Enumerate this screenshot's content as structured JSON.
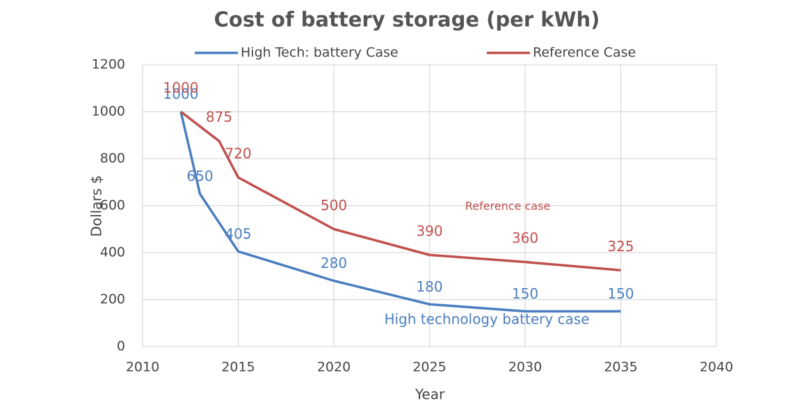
{
  "chart_data": {
    "type": "line",
    "title": "Cost of battery storage (per kWh)",
    "x_label": "Year",
    "y_label": "Dollars $",
    "series": [
      {
        "name": "High Tech: battery Case",
        "color": "#4a7ebf",
        "x": [
          2012,
          2013,
          2015,
          2020,
          2025,
          2030,
          2035
        ],
        "values": [
          1000,
          650,
          405,
          280,
          180,
          150,
          150
        ]
      },
      {
        "name": "Reference Case",
        "color": "#c0504d",
        "x": [
          2012,
          2014,
          2015,
          2020,
          2025,
          2030,
          2035
        ],
        "values": [
          1000,
          875,
          720,
          500,
          390,
          360,
          325
        ]
      }
    ],
    "annotations": [
      "Reference case",
      "High technology battery case"
    ],
    "xlim": [
      2010,
      2040
    ],
    "xticks": [
      2010,
      2015,
      2020,
      2025,
      2030,
      2035,
      2040
    ],
    "ylim": [
      0,
      1200
    ],
    "yticks": [
      0,
      200,
      400,
      600,
      800,
      1000,
      1200
    ],
    "grid": true,
    "legend": "top"
  }
}
